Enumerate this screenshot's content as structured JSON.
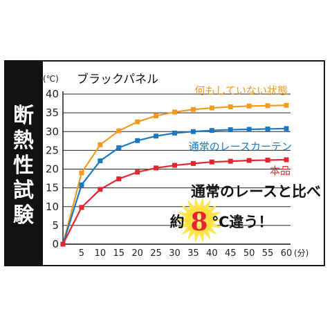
{
  "side_title": [
    "断",
    "熱",
    "性",
    "試",
    "験"
  ],
  "chart_data": {
    "type": "line",
    "title": "ブラックパネル",
    "ylabel": "(℃)",
    "xlabel": "(分)",
    "x": [
      0,
      5,
      10,
      15,
      20,
      25,
      30,
      35,
      40,
      45,
      50,
      55,
      60
    ],
    "xticks": [
      "5",
      "10",
      "15",
      "20",
      "25",
      "30",
      "35",
      "40",
      "45",
      "50",
      "55",
      "60"
    ],
    "yticks": [
      "0",
      "5",
      "10",
      "15",
      "20",
      "25",
      "30",
      "35",
      "40"
    ],
    "ylim": [
      0,
      40
    ],
    "xlim": [
      0,
      60
    ],
    "grid": "horizontal",
    "series": [
      {
        "name": "何もしていない状態",
        "color": "#f39a1e",
        "values": [
          0,
          19.0,
          26.5,
          30.2,
          32.6,
          34.2,
          35.2,
          35.9,
          36.3,
          36.6,
          36.8,
          36.9,
          37.0
        ]
      },
      {
        "name": "通常のレースカーテン",
        "color": "#1a78c2",
        "values": [
          0,
          15.8,
          22.2,
          25.7,
          27.6,
          28.8,
          29.6,
          30.0,
          30.3,
          30.5,
          30.6,
          30.7,
          30.8
        ]
      },
      {
        "name": "本品",
        "color": "#e3262e",
        "values": [
          0,
          9.8,
          14.6,
          17.4,
          19.2,
          20.3,
          21.0,
          21.5,
          21.9,
          22.1,
          22.3,
          22.4,
          22.5
        ]
      }
    ],
    "annotation": {
      "line1": "通常のレースと比べ",
      "prefix": "約",
      "value": "8",
      "unit": "℃違う！"
    }
  }
}
